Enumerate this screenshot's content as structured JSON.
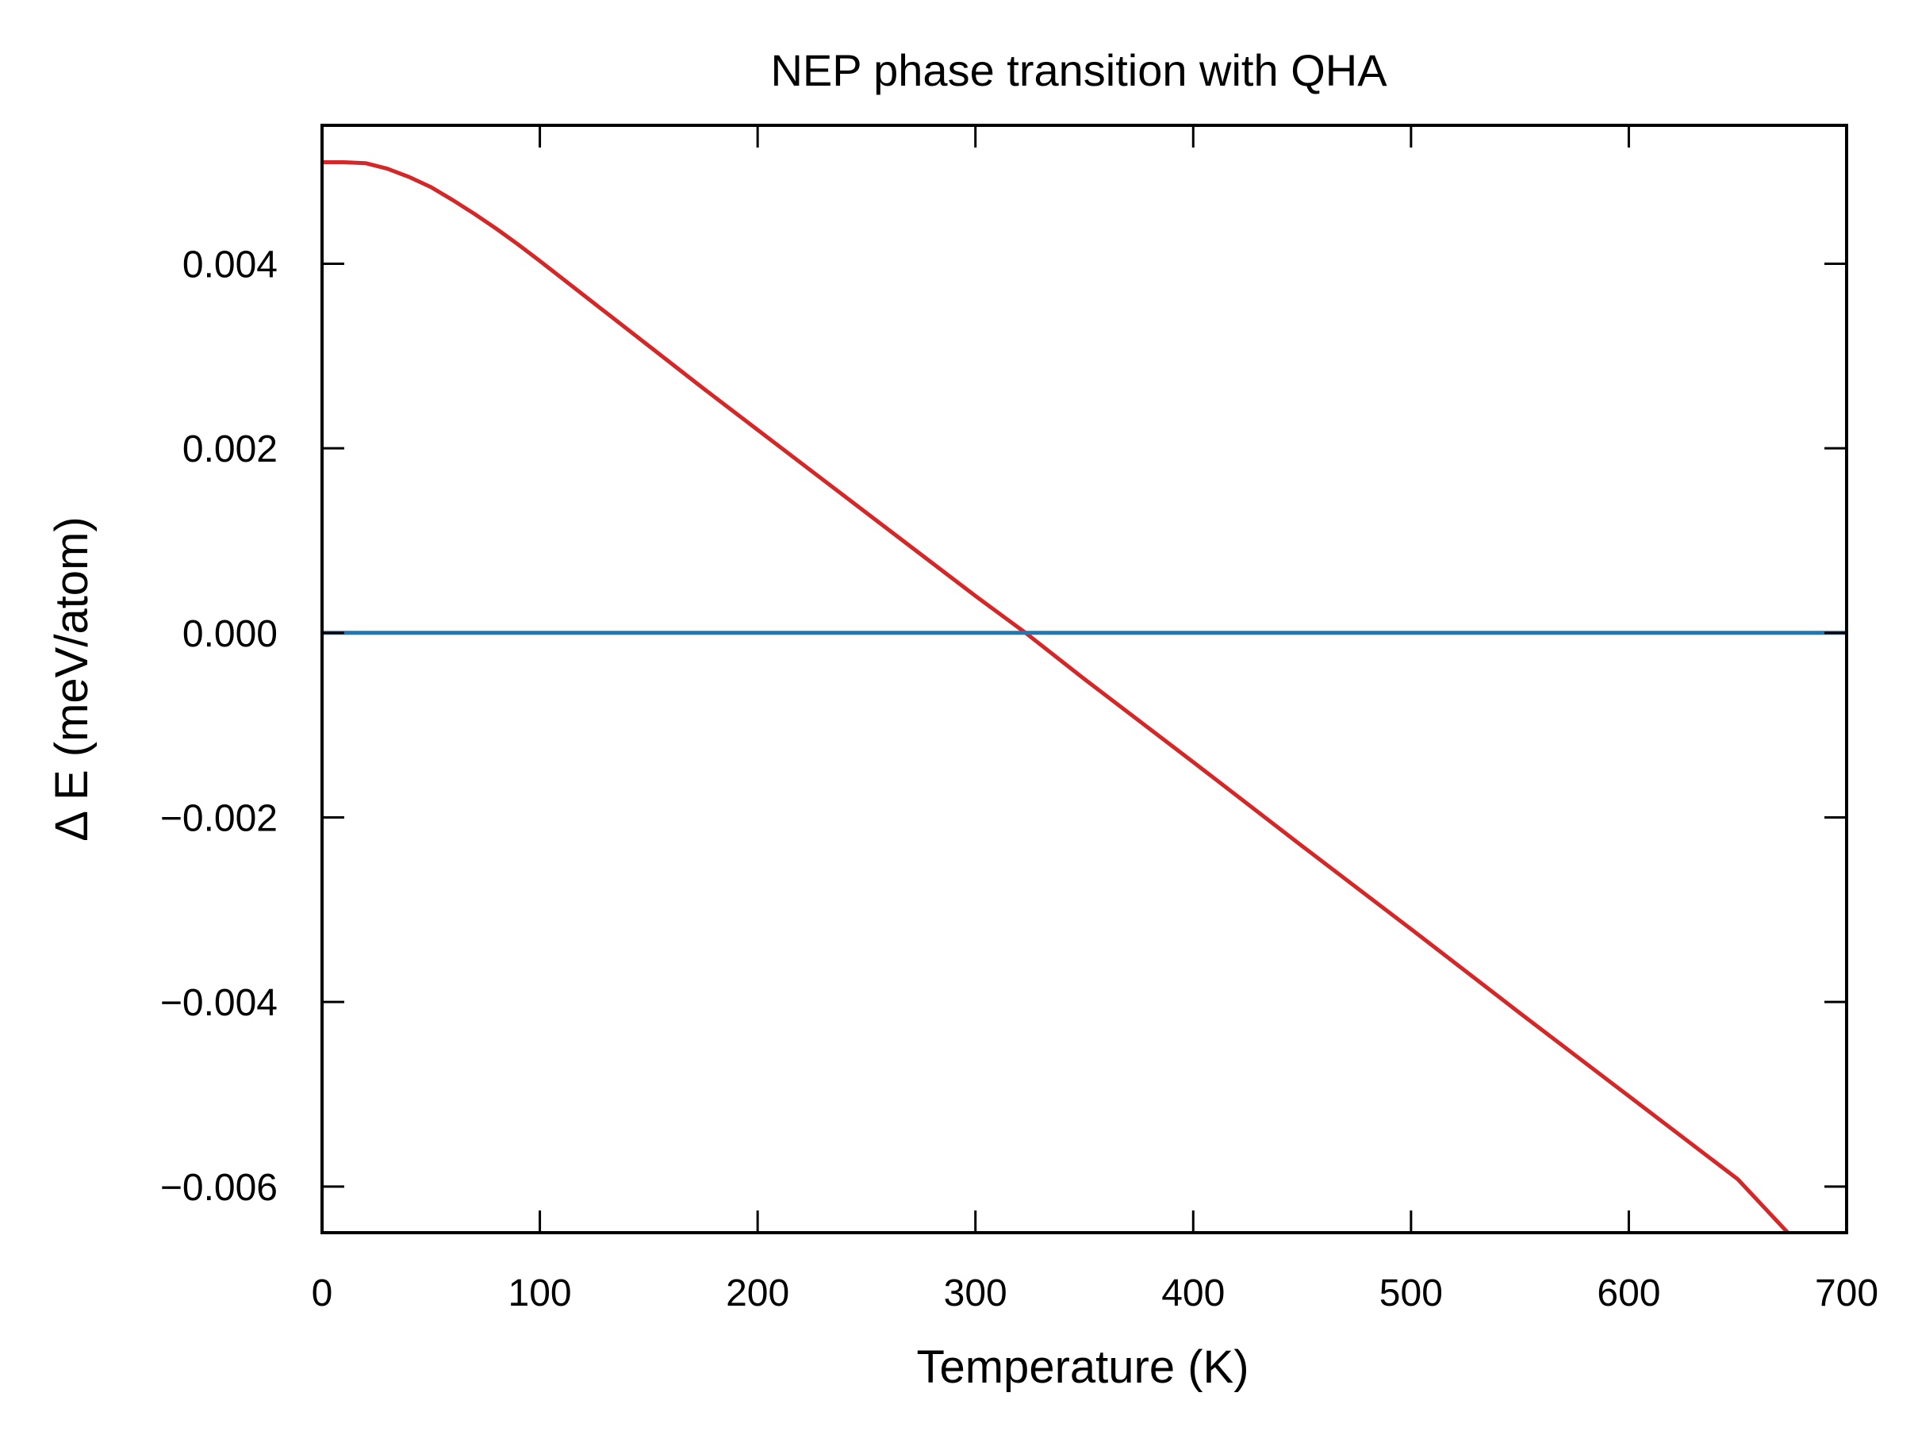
{
  "chart_data": {
    "type": "line",
    "title": "NEP phase transition with QHA",
    "xlabel": "Temperature (K)",
    "ylabel": "Δ E (meV/atom)",
    "xlim": [
      0,
      700
    ],
    "ylim": [
      -0.0065,
      0.0055
    ],
    "x_ticks": [
      0,
      100,
      200,
      300,
      400,
      500,
      600,
      700
    ],
    "x_tick_labels": [
      "0",
      "100",
      "200",
      "300",
      "400",
      "500",
      "600",
      "700"
    ],
    "y_ticks": [
      0.004,
      0.002,
      0.0,
      -0.002,
      -0.004,
      -0.006
    ],
    "y_tick_labels": [
      "0.004",
      "0.002",
      "0.000",
      "−0.002",
      "−0.004",
      "−0.006"
    ],
    "grid": false,
    "series": [
      {
        "color": "#d62728",
        "x": [
          0,
          10,
          20,
          30,
          40,
          50,
          60,
          70,
          80,
          90,
          100,
          125,
          150,
          175,
          200,
          250,
          300,
          323,
          350,
          400,
          450,
          500,
          550,
          600,
          650,
          673
        ],
        "y": [
          0.0051,
          0.0051,
          0.00509,
          0.00503,
          0.00494,
          0.00483,
          0.00469,
          0.00454,
          0.00438,
          0.00421,
          0.00403,
          0.00357,
          0.00311,
          0.00265,
          0.0022,
          0.0013,
          0.0004,
          0.0,
          -0.0005,
          -0.0014,
          -0.00231,
          -0.00321,
          -0.00412,
          -0.00502,
          -0.00592,
          -0.0065
        ]
      },
      {
        "color": "#1f77b4",
        "x": [
          0,
          700
        ],
        "y": [
          0.0,
          0.0
        ]
      }
    ]
  }
}
